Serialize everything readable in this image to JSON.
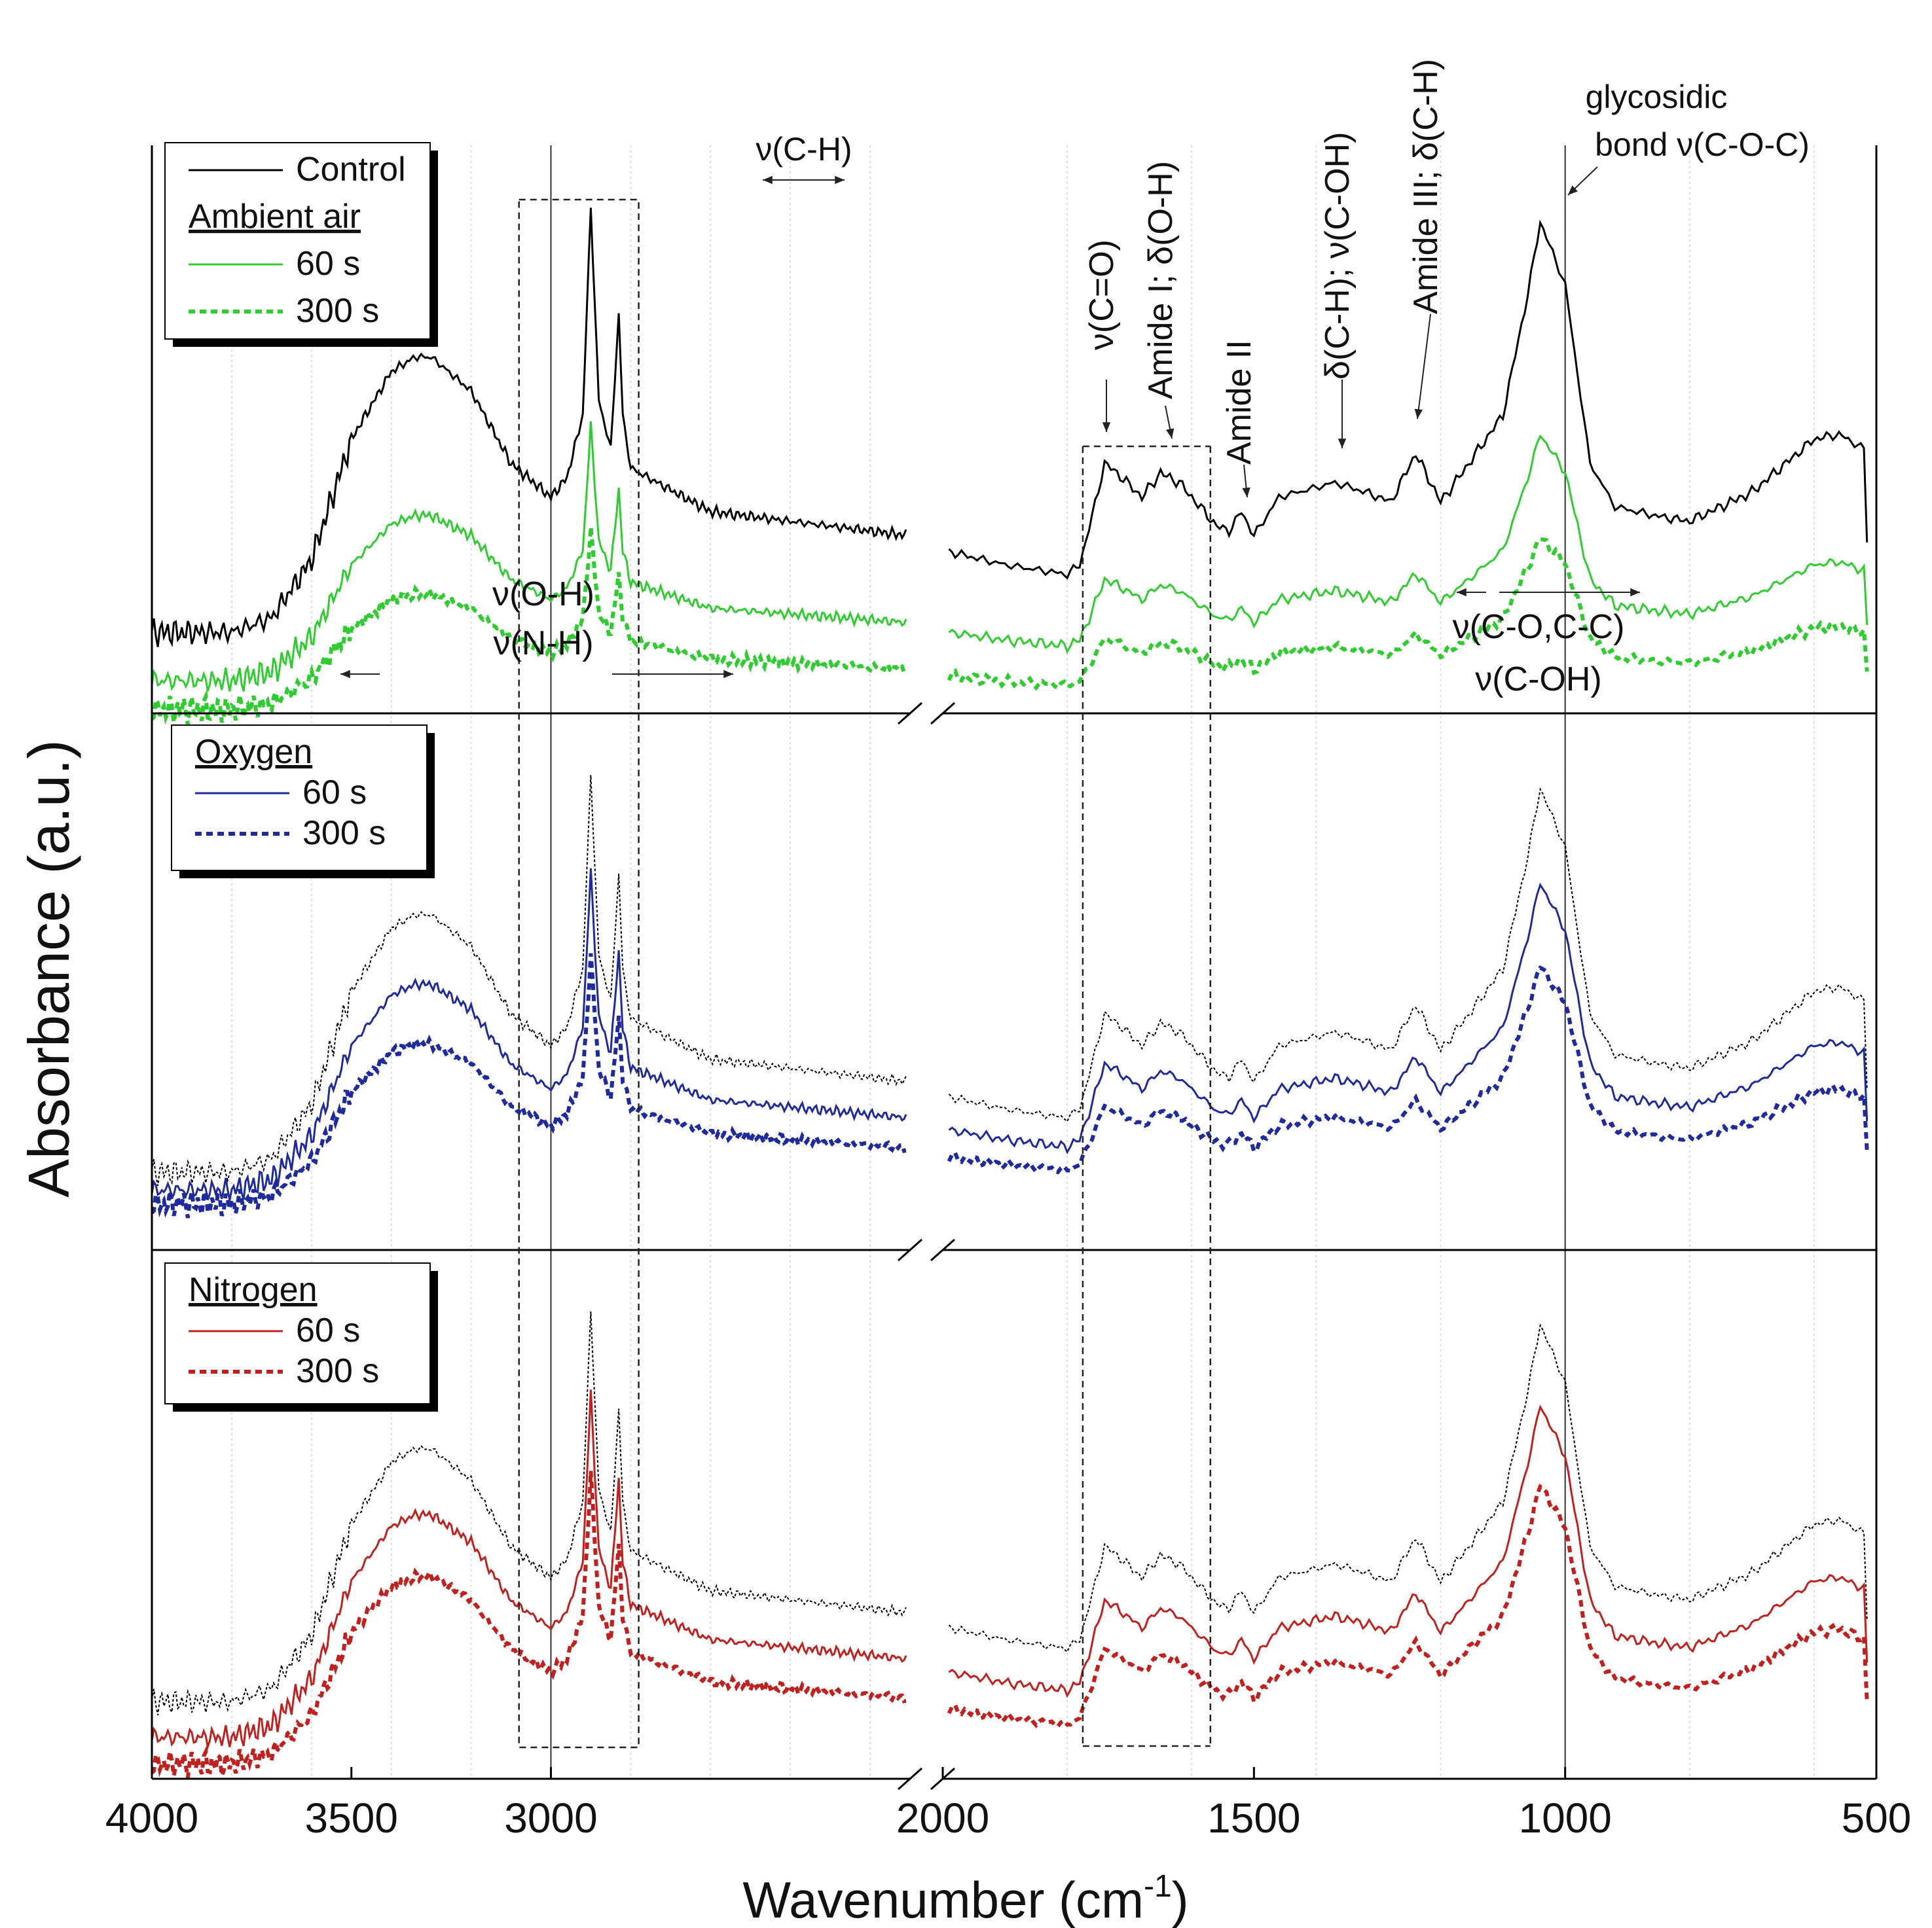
{
  "chart_data": {
    "type": "line",
    "title": "",
    "xlabel": "Wavenumber (cm",
    "xlabel_sup": "-1",
    "xlabel_end": ")",
    "ylabel": "Absorbance (a.u.)",
    "x_axis": {
      "break": [
        2100,
        2000
      ],
      "segment1_range": [
        4000,
        2100
      ],
      "segment2_range": [
        2000,
        500
      ],
      "ticks": [
        {
          "value": 4000,
          "label": "4000"
        },
        {
          "value": 3500,
          "label": "3500"
        },
        {
          "value": 3000,
          "label": "3000"
        },
        {
          "value": 2000,
          "label": "2000"
        },
        {
          "value": 1500,
          "label": "1500"
        },
        {
          "value": 1000,
          "label": "1000"
        },
        {
          "value": 500,
          "label": "500"
        }
      ],
      "gridlines": [
        3800,
        3600,
        3400,
        3200,
        3000,
        2800,
        2600,
        2400,
        2200,
        1800,
        1600,
        1400,
        1200,
        1000,
        800,
        600
      ]
    },
    "panels": [
      {
        "name": "Ambient air",
        "legend": [
          {
            "label": "Control",
            "color": "#000000",
            "style": "solid"
          },
          {
            "heading": "Ambient air"
          },
          {
            "label": "60 s",
            "color": "#2ecc2e",
            "style": "solid"
          },
          {
            "label": "300 s",
            "color": "#2ecc2e",
            "style": "dotted"
          }
        ],
        "series": [
          {
            "name": "Control",
            "color": "#000000",
            "style": "solid",
            "offset": 0.0,
            "scale": 1.0
          },
          {
            "name": "Ambient air 60 s",
            "color": "#2ecc2e",
            "style": "solid",
            "offset": -0.1,
            "scale": 0.6
          },
          {
            "name": "Ambient air 300 s",
            "color": "#2ecc2e",
            "style": "dotted",
            "offset": -0.16,
            "scale": 0.42
          }
        ]
      },
      {
        "name": "Oxygen",
        "legend": [
          {
            "heading": "Oxygen"
          },
          {
            "label": "60 s",
            "color": "#1f2a9c",
            "style": "solid"
          },
          {
            "label": "300 s",
            "color": "#1f2a9c",
            "style": "dotted"
          }
        ],
        "series": [
          {
            "name": "Control",
            "color": "#000000",
            "style": "thin-dotted",
            "offset": 0.0,
            "scale": 1.0
          },
          {
            "name": "Oxygen 60 s",
            "color": "#1f2a9c",
            "style": "solid",
            "offset": -0.04,
            "scale": 0.8
          },
          {
            "name": "Oxygen 300 s",
            "color": "#1f2a9c",
            "style": "dotted",
            "offset": -0.07,
            "scale": 0.62
          }
        ]
      },
      {
        "name": "Nitrogen",
        "legend": [
          {
            "heading": "Nitrogen"
          },
          {
            "label": "60 s",
            "color": "#c0201e",
            "style": "solid"
          },
          {
            "label": "300 s",
            "color": "#c0201e",
            "style": "dotted"
          }
        ],
        "series": [
          {
            "name": "Control",
            "color": "#000000",
            "style": "thin-dotted",
            "offset": 0.0,
            "scale": 1.0
          },
          {
            "name": "Nitrogen 60 s",
            "color": "#c0201e",
            "style": "solid",
            "offset": -0.08,
            "scale": 0.88
          },
          {
            "name": "Nitrogen 300 s",
            "color": "#c0201e",
            "style": "dotted",
            "offset": -0.14,
            "scale": 0.74
          }
        ]
      }
    ],
    "control_spectrum": {
      "x_units": "cm-1",
      "y_units": "a.u. (relative)",
      "points": [
        [
          4000,
          0.1
        ],
        [
          3800,
          0.1
        ],
        [
          3700,
          0.13
        ],
        [
          3600,
          0.25
        ],
        [
          3500,
          0.5
        ],
        [
          3400,
          0.64
        ],
        [
          3340,
          0.67
        ],
        [
          3300,
          0.67
        ],
        [
          3200,
          0.6
        ],
        [
          3100,
          0.45
        ],
        [
          3000,
          0.38
        ],
        [
          2960,
          0.42
        ],
        [
          2920,
          0.55
        ],
        [
          2900,
          0.98
        ],
        [
          2880,
          0.58
        ],
        [
          2850,
          0.48
        ],
        [
          2830,
          0.76
        ],
        [
          2820,
          0.55
        ],
        [
          2800,
          0.44
        ],
        [
          2600,
          0.35
        ],
        [
          2100,
          0.3
        ],
        [
          2000,
          0.27
        ],
        [
          1900,
          0.24
        ],
        [
          1800,
          0.22
        ],
        [
          1780,
          0.24
        ],
        [
          1760,
          0.34
        ],
        [
          1740,
          0.45
        ],
        [
          1720,
          0.43
        ],
        [
          1680,
          0.38
        ],
        [
          1650,
          0.43
        ],
        [
          1620,
          0.41
        ],
        [
          1560,
          0.32
        ],
        [
          1540,
          0.31
        ],
        [
          1520,
          0.35
        ],
        [
          1500,
          0.3
        ],
        [
          1460,
          0.38
        ],
        [
          1400,
          0.4
        ],
        [
          1370,
          0.41
        ],
        [
          1320,
          0.39
        ],
        [
          1280,
          0.37
        ],
        [
          1240,
          0.47
        ],
        [
          1200,
          0.37
        ],
        [
          1160,
          0.44
        ],
        [
          1100,
          0.55
        ],
        [
          1060,
          0.8
        ],
        [
          1040,
          0.95
        ],
        [
          1000,
          0.82
        ],
        [
          960,
          0.45
        ],
        [
          920,
          0.36
        ],
        [
          850,
          0.34
        ],
        [
          800,
          0.33
        ],
        [
          700,
          0.39
        ],
        [
          600,
          0.5
        ],
        [
          560,
          0.51
        ],
        [
          520,
          0.48
        ],
        [
          510,
          0.1
        ]
      ]
    },
    "annotations": [
      {
        "id": "nu-ch",
        "text": "ν(C-H)",
        "x": 2900
      },
      {
        "id": "nu-oh",
        "text": "ν(O-H)",
        "x": 3300
      },
      {
        "id": "nu-nh",
        "text": "ν(N-H)",
        "x": 3300
      },
      {
        "id": "nu-co",
        "text": "ν(C=O)",
        "x": 1730
      },
      {
        "id": "amide1",
        "text": "Amide I; δ(O-H)",
        "x": 1650
      },
      {
        "id": "amide2",
        "text": "Amide II",
        "x": 1540
      },
      {
        "id": "delta-ch",
        "text": "δ(C-H); ν(C-OH)",
        "x": 1380
      },
      {
        "id": "amide3",
        "text": "Amide III; δ(C-H)",
        "x": 1240
      },
      {
        "id": "glyco1",
        "text": "glycosidic",
        "x": 1000
      },
      {
        "id": "glyco2",
        "text": "bond  ν(C-O-C)",
        "x": 1000
      },
      {
        "id": "nu-cocc",
        "text": "ν(C-O,C-C)",
        "x": 1000
      },
      {
        "id": "nu-coh",
        "text": "ν(C-OH)",
        "x": 1000
      }
    ]
  }
}
